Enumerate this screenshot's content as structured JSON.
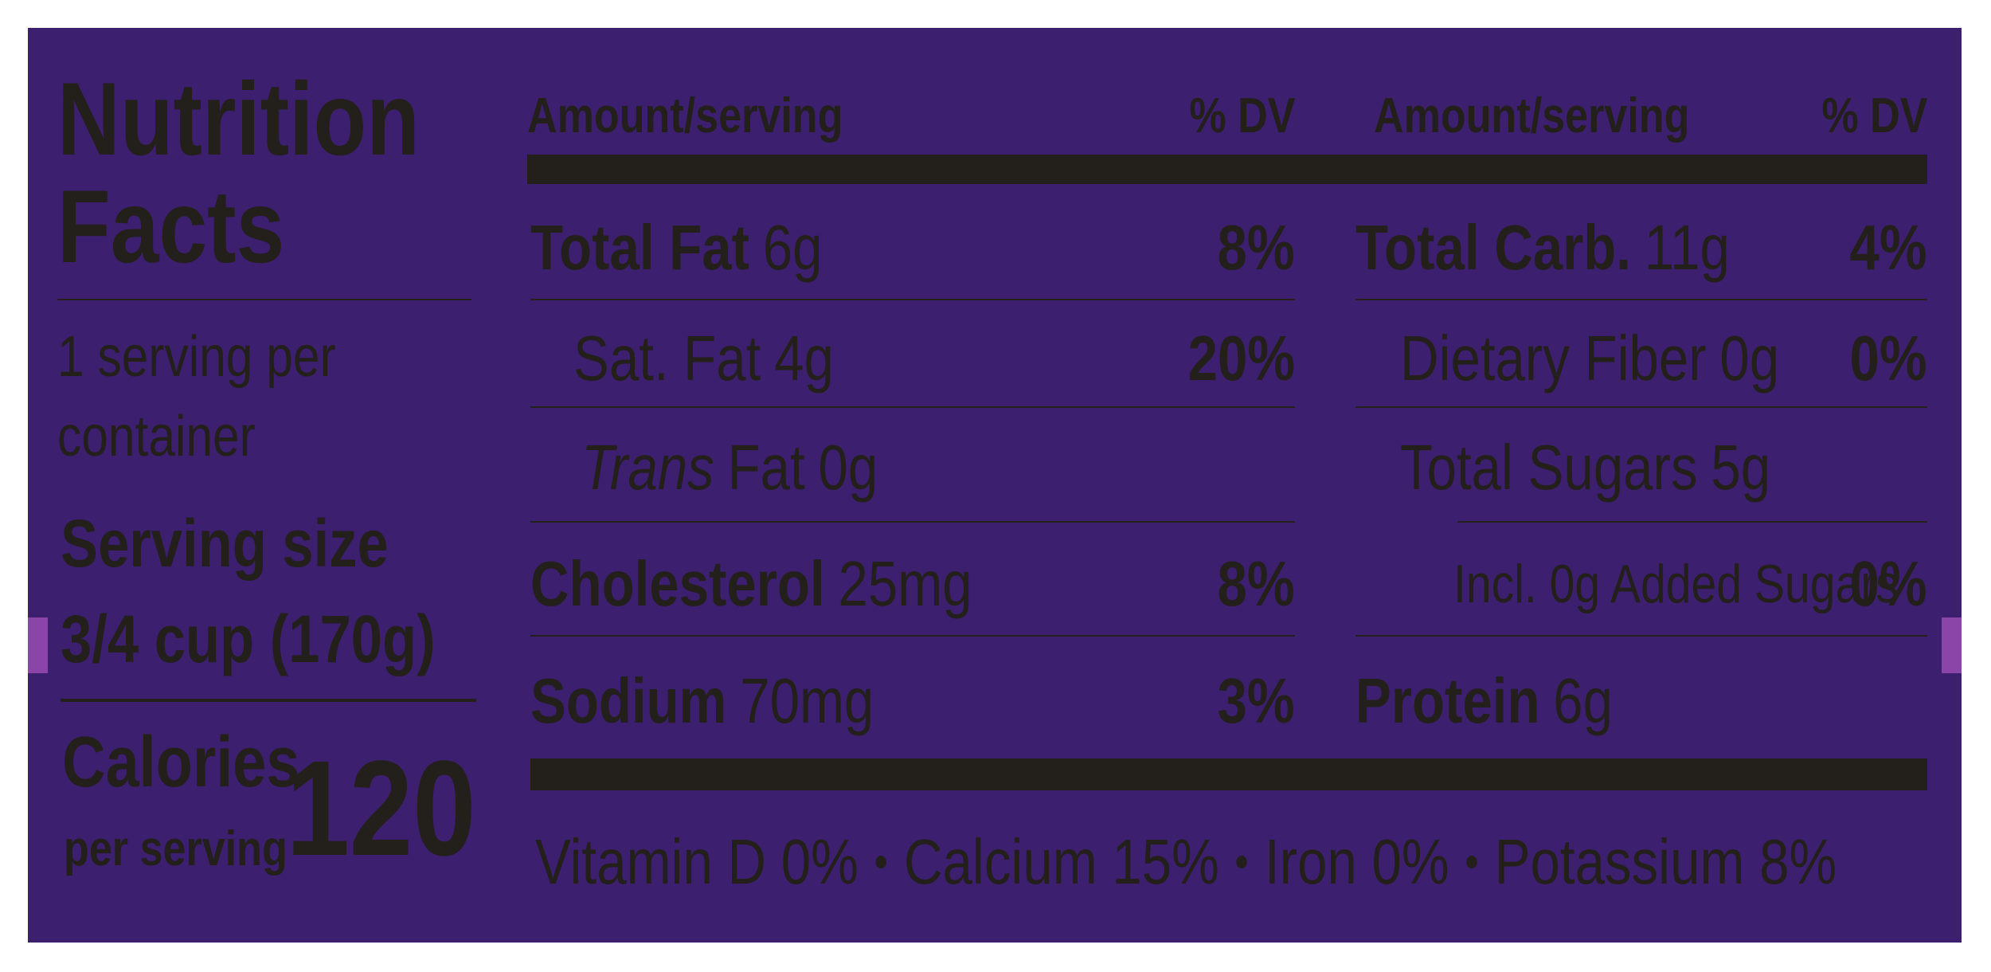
{
  "title": "Nutrition Facts",
  "servings": "1 serving per container",
  "serving_size_label": "Serving size",
  "serving_size": "3/4 cup (170g)",
  "calories_label": "Calories",
  "calories_unit": "per serving",
  "calories": 120,
  "columns": [
    {
      "amount_header": "Amount/serving",
      "dv_header": "% DV",
      "rows": [
        {
          "name": "Total Fat",
          "amount": "6g",
          "dv": "8%"
        },
        {
          "name": "Sat. Fat",
          "amount": "4g",
          "dv": "20%"
        },
        {
          "name_italic": "Trans",
          "name": "Fat",
          "amount": "0g"
        },
        {
          "name": "Cholesterol",
          "amount": "25mg",
          "dv": "8%"
        },
        {
          "name": "Sodium",
          "amount": "70mg",
          "dv": "3%"
        }
      ]
    },
    {
      "amount_header": "Amount/serving",
      "dv_header": "% DV",
      "rows": [
        {
          "name": "Total Carb.",
          "amount": "11g",
          "dv": "4%"
        },
        {
          "name": "Dietary Fiber",
          "amount": "0g",
          "dv": "0%"
        },
        {
          "name": "Total Sugars",
          "amount": "5g"
        },
        {
          "name": "Incl. 0g Added Sugars",
          "dv": "0%"
        },
        {
          "name": "Protein",
          "amount": "6g"
        }
      ]
    }
  ],
  "vitamins": [
    "Vitamin D 0%",
    "Calcium 15%",
    "Iron 0%",
    "Potassium 8%"
  ]
}
